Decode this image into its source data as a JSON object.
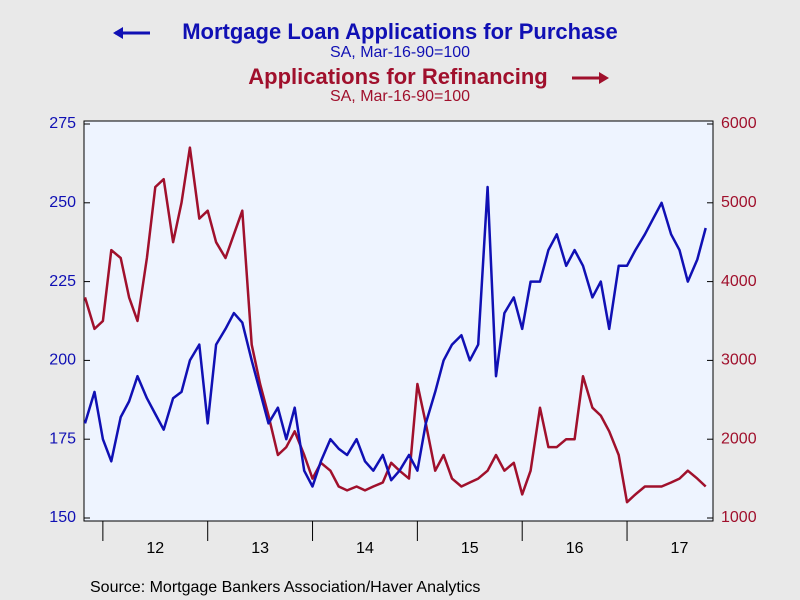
{
  "chart_data": {
    "type": "line",
    "source": "Source:  Mortgage Bankers Association/Haver Analytics",
    "x": [
      2011.83,
      2011.92,
      2012.0,
      2012.08,
      2012.17,
      2012.25,
      2012.33,
      2012.42,
      2012.5,
      2012.58,
      2012.67,
      2012.75,
      2012.83,
      2012.92,
      2013.0,
      2013.08,
      2013.17,
      2013.25,
      2013.33,
      2013.42,
      2013.5,
      2013.58,
      2013.67,
      2013.75,
      2013.83,
      2013.92,
      2014.0,
      2014.08,
      2014.17,
      2014.25,
      2014.33,
      2014.42,
      2014.5,
      2014.58,
      2014.67,
      2014.75,
      2014.83,
      2014.92,
      2015.0,
      2015.08,
      2015.17,
      2015.25,
      2015.33,
      2015.42,
      2015.5,
      2015.58,
      2015.67,
      2015.75,
      2015.83,
      2015.92,
      2016.0,
      2016.08,
      2016.17,
      2016.25,
      2016.33,
      2016.42,
      2016.5,
      2016.58,
      2016.67,
      2016.75,
      2016.83,
      2016.92,
      2017.0,
      2017.08,
      2017.17,
      2017.25,
      2017.33,
      2017.42,
      2017.5,
      2017.58,
      2017.67,
      2017.75
    ],
    "series": [
      {
        "name": "Mortgage Loan Applications for Purchase",
        "subtitle": "SA, Mar-16-90=100",
        "color": "#1010b4",
        "axis": "y",
        "values": [
          180,
          190,
          175,
          168,
          182,
          187,
          195,
          188,
          183,
          178,
          188,
          190,
          200,
          205,
          180,
          205,
          210,
          215,
          212,
          200,
          190,
          180,
          185,
          175,
          185,
          165,
          160,
          168,
          175,
          172,
          170,
          175,
          168,
          165,
          170,
          162,
          165,
          170,
          165,
          180,
          190,
          200,
          205,
          208,
          200,
          205,
          255,
          195,
          215,
          220,
          210,
          225,
          225,
          235,
          240,
          230,
          235,
          230,
          220,
          225,
          210,
          230,
          230,
          235,
          240,
          245,
          250,
          240,
          235,
          225,
          232,
          242
        ]
      },
      {
        "name": "Applications for Refinancing",
        "subtitle": "SA, Mar-16-90=100",
        "color": "#a0102c",
        "axis": "y2",
        "values": [
          3800,
          3400,
          3500,
          4400,
          4300,
          3800,
          3500,
          4300,
          5200,
          5300,
          4500,
          5000,
          5700,
          4800,
          4900,
          4500,
          4300,
          4600,
          4900,
          3200,
          2700,
          2300,
          1800,
          1900,
          2100,
          1800,
          1500,
          1700,
          1600,
          1400,
          1350,
          1400,
          1350,
          1400,
          1450,
          1700,
          1600,
          1500,
          2700,
          2200,
          1600,
          1800,
          1500,
          1400,
          1450,
          1500,
          1600,
          1800,
          1600,
          1700,
          1300,
          1600,
          2400,
          1900,
          1900,
          2000,
          2000,
          2800,
          2400,
          2300,
          2100,
          1800,
          1200,
          1300,
          1400,
          1400,
          1400,
          1450,
          1500,
          1600,
          1500,
          1400
        ]
      }
    ],
    "xlim": [
      2011.82,
      2017.82
    ],
    "xminor": [
      2012,
      2013,
      2014,
      2015,
      2016,
      2017
    ],
    "xticks": [
      {
        "value": 2012.5,
        "label": "12"
      },
      {
        "value": 2013.5,
        "label": "13"
      },
      {
        "value": 2014.5,
        "label": "14"
      },
      {
        "value": 2015.5,
        "label": "15"
      },
      {
        "value": 2016.5,
        "label": "16"
      },
      {
        "value": 2017.5,
        "label": "17"
      }
    ],
    "ylim": [
      150,
      275
    ],
    "yticks": [
      150,
      175,
      200,
      225,
      250,
      275
    ],
    "y2lim": [
      1000,
      6000
    ],
    "y2ticks": [
      1000,
      2000,
      3000,
      4000,
      5000,
      6000
    ],
    "grid": false
  }
}
